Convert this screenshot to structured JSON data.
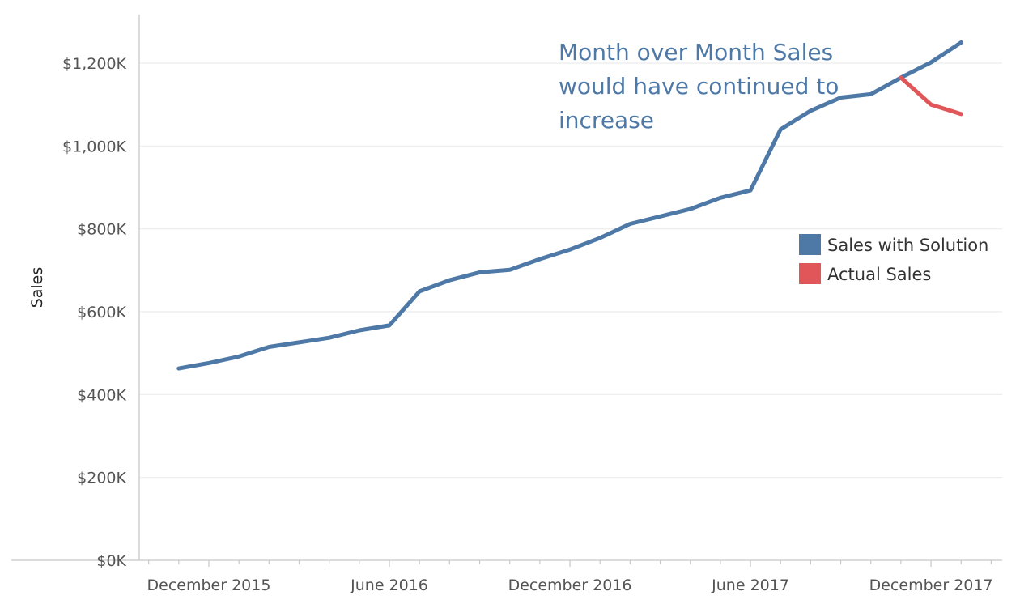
{
  "chart_data": {
    "type": "line",
    "title": "",
    "xlabel": "",
    "ylabel": "Sales",
    "ylim": [
      0,
      1300
    ],
    "y_unit": "thousand dollars",
    "y_ticks": [
      {
        "value": 0,
        "label": "$0K"
      },
      {
        "value": 200,
        "label": "$200K"
      },
      {
        "value": 400,
        "label": "$400K"
      },
      {
        "value": 600,
        "label": "$600K"
      },
      {
        "value": 800,
        "label": "$800K"
      },
      {
        "value": 1000,
        "label": "$1,000K"
      },
      {
        "value": 1200,
        "label": "$1,200K"
      }
    ],
    "x_ticks": [
      {
        "x": "2015-12",
        "label": "December 2015"
      },
      {
        "x": "2016-06",
        "label": "June 2016"
      },
      {
        "x": "2016-12",
        "label": "December 2016"
      },
      {
        "x": "2017-06",
        "label": "June 2017"
      },
      {
        "x": "2017-12",
        "label": "December 2017"
      }
    ],
    "x_range": [
      "2015-10",
      "2018-05"
    ],
    "grid": "horizontal",
    "legend_position": "right",
    "series": [
      {
        "name": "Sales with Solution",
        "color": "#4e79a7",
        "points": [
          {
            "x": "2015-11",
            "y": 463
          },
          {
            "x": "2015-12",
            "y": 476
          },
          {
            "x": "2016-01",
            "y": 492
          },
          {
            "x": "2016-02",
            "y": 515
          },
          {
            "x": "2016-03",
            "y": 526
          },
          {
            "x": "2016-04",
            "y": 537
          },
          {
            "x": "2016-05",
            "y": 555
          },
          {
            "x": "2016-06",
            "y": 567
          },
          {
            "x": "2016-07",
            "y": 649
          },
          {
            "x": "2016-08",
            "y": 676
          },
          {
            "x": "2016-09",
            "y": 695
          },
          {
            "x": "2016-10",
            "y": 701
          },
          {
            "x": "2016-11",
            "y": 727
          },
          {
            "x": "2016-12",
            "y": 750
          },
          {
            "x": "2017-01",
            "y": 778
          },
          {
            "x": "2017-02",
            "y": 812
          },
          {
            "x": "2017-03",
            "y": 830
          },
          {
            "x": "2017-04",
            "y": 848
          },
          {
            "x": "2017-05",
            "y": 875
          },
          {
            "x": "2017-06",
            "y": 893
          },
          {
            "x": "2017-07",
            "y": 1040
          },
          {
            "x": "2017-08",
            "y": 1085
          },
          {
            "x": "2017-09",
            "y": 1117
          },
          {
            "x": "2017-10",
            "y": 1125
          },
          {
            "x": "2017-11",
            "y": 1165
          },
          {
            "x": "2017-12",
            "y": 1202
          },
          {
            "x": "2018-01",
            "y": 1250
          }
        ]
      },
      {
        "name": "Actual Sales",
        "color": "#e15759",
        "points": [
          {
            "x": "2017-11",
            "y": 1165
          },
          {
            "x": "2017-12",
            "y": 1100
          },
          {
            "x": "2018-01",
            "y": 1077
          }
        ]
      }
    ],
    "annotation": {
      "lines": [
        "Month over Month Sales",
        "would have continued to",
        "increase"
      ],
      "color": "#4e79a7"
    }
  }
}
